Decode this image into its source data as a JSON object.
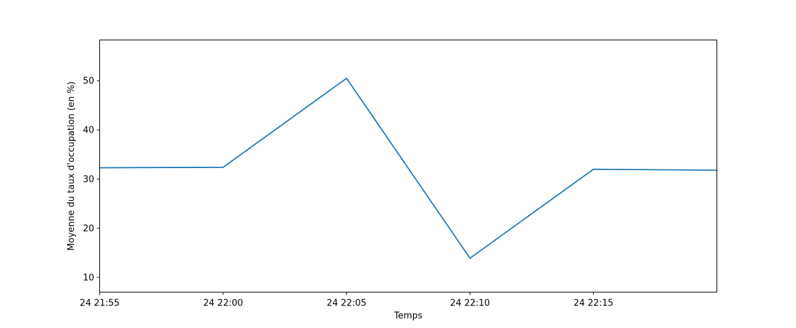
{
  "chart_data": {
    "type": "line",
    "title": "",
    "xlabel": "Temps",
    "ylabel": "Moyenne du taux d'occupation (en %)",
    "x_ticks": [
      "24 21:55",
      "24 22:00",
      "24 22:05",
      "24 22:10",
      "24 22:15"
    ],
    "x": [
      "24 21:55",
      "24 22:00",
      "24 22:05",
      "24 22:10",
      "24 22:15",
      "24 22:20"
    ],
    "xlim": [
      "24 21:55",
      "24 22:20"
    ],
    "y_ticks": [
      10,
      20,
      30,
      40,
      50
    ],
    "ylim": [
      7,
      58.3
    ],
    "grid": false,
    "series": [
      {
        "values": [
          32.3,
          32.4,
          50.5,
          13.9,
          32.0,
          31.8
        ],
        "color": "#1f77b4"
      }
    ]
  }
}
